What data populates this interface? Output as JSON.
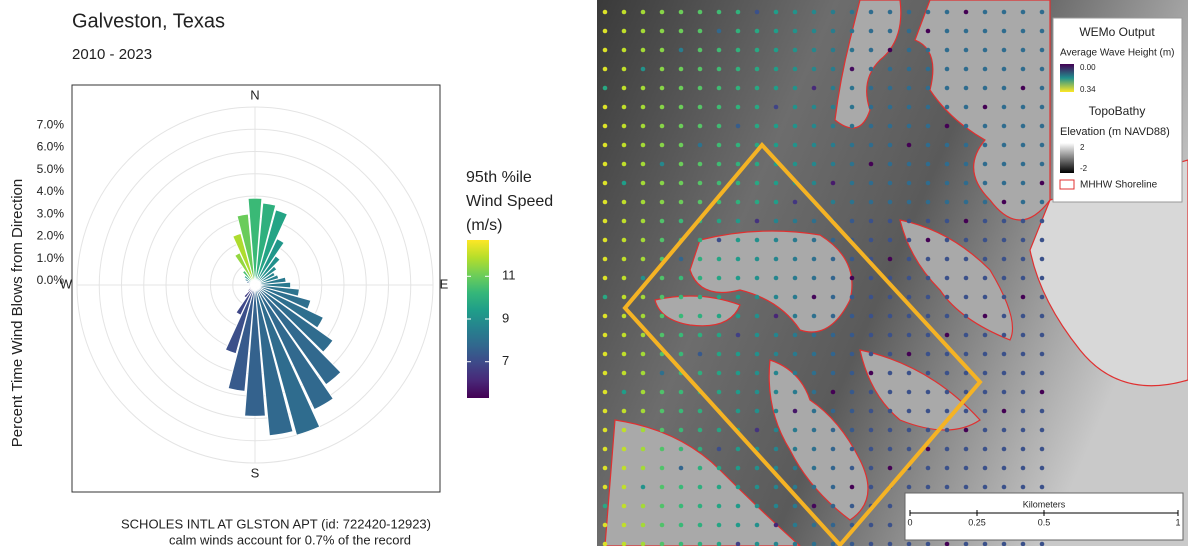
{
  "chart_data": {
    "type": "windrose",
    "title": "Galveston, Texas",
    "subtitle": "2010 - 2023",
    "y_label": "Percent Time Wind Blows from Direction",
    "direction_labels": [
      "N",
      "E",
      "S",
      "W"
    ],
    "x": [
      0,
      10,
      20,
      30,
      40,
      50,
      60,
      70,
      80,
      90,
      100,
      110,
      120,
      130,
      140,
      150,
      160,
      170,
      180,
      190,
      200,
      210,
      220,
      230,
      240,
      250,
      260,
      270,
      280,
      290,
      300,
      310,
      320,
      330,
      340,
      350
    ],
    "xlim": [
      0,
      360
    ],
    "values": [
      3.9,
      3.7,
      3.5,
      2.3,
      1.6,
      1.2,
      1.0,
      1.1,
      1.4,
      1.6,
      2.0,
      2.6,
      3.4,
      4.3,
      5.5,
      6.2,
      7.0,
      6.8,
      5.9,
      4.8,
      3.2,
      1.5,
      0.7,
      0.4,
      0.3,
      0.2,
      0.2,
      0.2,
      0.3,
      0.4,
      0.5,
      0.6,
      0.8,
      1.6,
      2.4,
      3.2
    ],
    "color_values": [
      10.3,
      10.0,
      9.6,
      9.2,
      9.0,
      8.8,
      8.6,
      8.5,
      8.3,
      8.3,
      8.1,
      8.0,
      8.0,
      7.9,
      7.8,
      7.8,
      7.9,
      7.8,
      7.6,
      7.4,
      7.1,
      6.9,
      6.6,
      6.4,
      6.3,
      6.3,
      6.5,
      6.7,
      7.0,
      7.5,
      8.2,
      9.5,
      10.5,
      11.5,
      11.8,
      11.0
    ],
    "ylim": [
      0,
      8
    ],
    "yticks": [
      {
        "value": 0,
        "label": "0.0%"
      },
      {
        "value": 1,
        "label": "1.0%"
      },
      {
        "value": 2,
        "label": "2.0%"
      },
      {
        "value": 3,
        "label": "3.0%"
      },
      {
        "value": 4,
        "label": "4.0%"
      },
      {
        "value": 5,
        "label": "5.0%"
      },
      {
        "value": 6,
        "label": "6.0%"
      },
      {
        "value": 7,
        "label": "7.0%"
      }
    ],
    "grid": true,
    "colorbar_title": [
      "95th %ile",
      "Wind Speed",
      "(m/s)"
    ],
    "clim": [
      5.3,
      12.7
    ],
    "cticks": [
      7,
      9,
      11
    ],
    "caption": [
      "SCHOLES INTL AT GLSTON APT (id: 722420-12923)",
      "calm winds account for 0.7% of the record"
    ]
  },
  "map": {
    "legend": {
      "title": "WEMo Output",
      "wave_label": "Average Wave Height (m)",
      "wave_high": "0.00",
      "wave_low": "0.34",
      "topo_title": "TopoBathy",
      "elev_label": "Elevation (m NAVD88)",
      "elev_high": "2",
      "elev_low": "-2",
      "shoreline": "MHHW Shoreline"
    },
    "scale_bar": {
      "title": "Kilometers",
      "range": [
        0,
        1
      ],
      "ticks": [
        0,
        0.25,
        0.5,
        1
      ]
    }
  }
}
